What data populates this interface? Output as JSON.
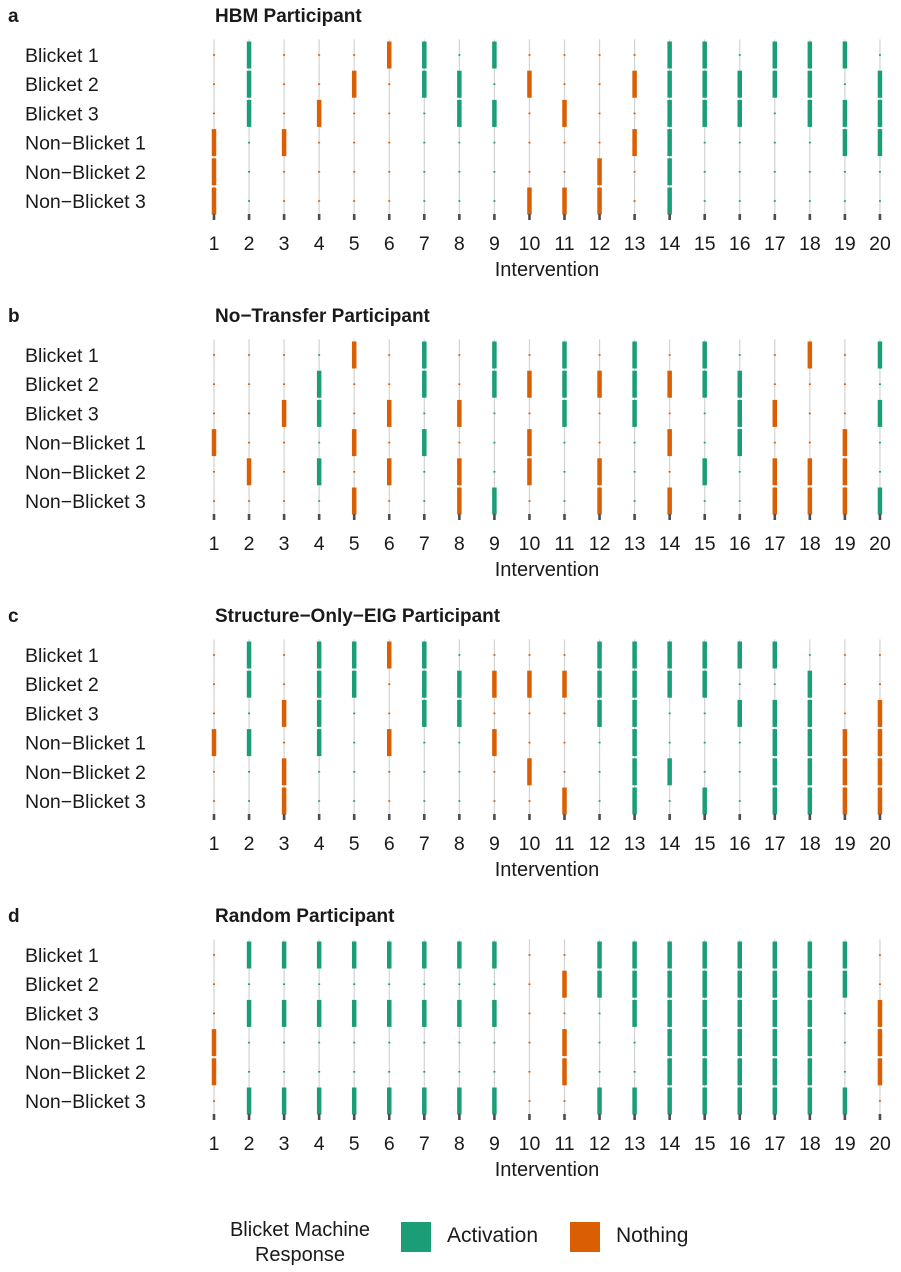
{
  "chart_data": [
    {
      "type": "heatmap",
      "panel_label": "a",
      "title": "HBM Participant",
      "xlabel": "Intervention",
      "ylabel": "",
      "x_ticks": [
        "1",
        "2",
        "3",
        "4",
        "5",
        "6",
        "7",
        "8",
        "9",
        "10",
        "11",
        "12",
        "13",
        "14",
        "15",
        "16",
        "17",
        "18",
        "19",
        "20"
      ],
      "rows": [
        "Blicket 1",
        "Blicket 2",
        "Blicket 3",
        "Non−Blicket 1",
        "Non−Blicket 2",
        "Non−Blicket 3"
      ],
      "response": [
        "Nothing",
        "Activation",
        "Nothing",
        "Nothing",
        "Nothing",
        "Nothing",
        "Activation",
        "Activation",
        "Activation",
        "Nothing",
        "Nothing",
        "Nothing",
        "Nothing",
        "Activation",
        "Activation",
        "Activation",
        "Activation",
        "Activation",
        "Activation",
        "Activation"
      ],
      "placed": [
        [
          0,
          1,
          0,
          0,
          0,
          1,
          1,
          0,
          1,
          0,
          0,
          0,
          0,
          1,
          1,
          0,
          1,
          1,
          1,
          0
        ],
        [
          0,
          1,
          0,
          0,
          1,
          0,
          1,
          1,
          0,
          1,
          0,
          0,
          1,
          1,
          1,
          1,
          1,
          1,
          0,
          1
        ],
        [
          0,
          1,
          0,
          1,
          0,
          0,
          0,
          1,
          1,
          0,
          1,
          0,
          0,
          1,
          1,
          1,
          0,
          1,
          1,
          1
        ],
        [
          1,
          0,
          1,
          0,
          0,
          0,
          0,
          0,
          0,
          0,
          0,
          0,
          1,
          1,
          0,
          0,
          0,
          0,
          1,
          1
        ],
        [
          1,
          0,
          0,
          0,
          0,
          0,
          0,
          0,
          0,
          0,
          0,
          1,
          0,
          1,
          0,
          0,
          0,
          0,
          0,
          0
        ],
        [
          1,
          0,
          0,
          0,
          0,
          0,
          0,
          0,
          0,
          1,
          1,
          1,
          0,
          1,
          0,
          0,
          0,
          0,
          0,
          0
        ]
      ]
    },
    {
      "type": "heatmap",
      "panel_label": "b",
      "title": "No−Transfer Participant",
      "xlabel": "Intervention",
      "ylabel": "",
      "x_ticks": [
        "1",
        "2",
        "3",
        "4",
        "5",
        "6",
        "7",
        "8",
        "9",
        "10",
        "11",
        "12",
        "13",
        "14",
        "15",
        "16",
        "17",
        "18",
        "19",
        "20"
      ],
      "rows": [
        "Blicket 1",
        "Blicket 2",
        "Blicket 3",
        "Non−Blicket 1",
        "Non−Blicket 2",
        "Non−Blicket 3"
      ],
      "response": [
        "Nothing",
        "Nothing",
        "Nothing",
        "Activation",
        "Nothing",
        "Nothing",
        "Activation",
        "Nothing",
        "Activation",
        "Nothing",
        "Activation",
        "Nothing",
        "Activation",
        "Nothing",
        "Activation",
        "Activation",
        "Nothing",
        "Nothing",
        "Nothing",
        "Activation"
      ],
      "placed": [
        [
          0,
          0,
          0,
          0,
          1,
          0,
          1,
          0,
          1,
          0,
          1,
          0,
          1,
          0,
          1,
          0,
          0,
          1,
          0,
          1
        ],
        [
          0,
          0,
          0,
          1,
          0,
          0,
          1,
          0,
          1,
          1,
          1,
          1,
          1,
          1,
          1,
          1,
          0,
          0,
          0,
          0
        ],
        [
          0,
          0,
          1,
          1,
          0,
          1,
          0,
          1,
          0,
          0,
          1,
          0,
          1,
          0,
          0,
          1,
          1,
          0,
          0,
          1
        ],
        [
          1,
          0,
          0,
          0,
          1,
          0,
          1,
          0,
          0,
          1,
          0,
          0,
          0,
          1,
          0,
          1,
          0,
          0,
          1,
          0
        ],
        [
          0,
          1,
          0,
          1,
          0,
          1,
          0,
          1,
          0,
          1,
          0,
          1,
          0,
          0,
          1,
          0,
          1,
          1,
          1,
          0
        ],
        [
          0,
          0,
          0,
          0,
          1,
          0,
          0,
          1,
          1,
          0,
          0,
          1,
          0,
          1,
          0,
          0,
          1,
          1,
          1,
          1
        ]
      ]
    },
    {
      "type": "heatmap",
      "panel_label": "c",
      "title": "Structure−Only−EIG Participant",
      "xlabel": "Intervention",
      "ylabel": "",
      "x_ticks": [
        "1",
        "2",
        "3",
        "4",
        "5",
        "6",
        "7",
        "8",
        "9",
        "10",
        "11",
        "12",
        "13",
        "14",
        "15",
        "16",
        "17",
        "18",
        "19",
        "20"
      ],
      "rows": [
        "Blicket 1",
        "Blicket 2",
        "Blicket 3",
        "Non−Blicket 1",
        "Non−Blicket 2",
        "Non−Blicket 3"
      ],
      "response": [
        "Nothing",
        "Activation",
        "Nothing",
        "Activation",
        "Activation",
        "Nothing",
        "Activation",
        "Activation",
        "Nothing",
        "Nothing",
        "Nothing",
        "Activation",
        "Activation",
        "Activation",
        "Activation",
        "Activation",
        "Activation",
        "Activation",
        "Nothing",
        "Nothing"
      ],
      "placed": [
        [
          0,
          1,
          0,
          1,
          1,
          1,
          1,
          0,
          0,
          0,
          0,
          1,
          1,
          1,
          1,
          1,
          1,
          0,
          0,
          0
        ],
        [
          0,
          1,
          0,
          1,
          1,
          0,
          1,
          1,
          1,
          1,
          1,
          1,
          1,
          1,
          1,
          0,
          0,
          1,
          0,
          0
        ],
        [
          0,
          0,
          1,
          1,
          0,
          0,
          1,
          1,
          0,
          0,
          0,
          1,
          1,
          0,
          0,
          1,
          1,
          1,
          0,
          1
        ],
        [
          1,
          1,
          0,
          1,
          0,
          1,
          0,
          0,
          1,
          0,
          0,
          0,
          1,
          0,
          0,
          0,
          1,
          1,
          1,
          1
        ],
        [
          0,
          0,
          1,
          0,
          0,
          0,
          0,
          0,
          0,
          1,
          0,
          0,
          1,
          1,
          0,
          0,
          1,
          1,
          1,
          1
        ],
        [
          0,
          0,
          1,
          0,
          0,
          0,
          0,
          0,
          0,
          0,
          1,
          0,
          1,
          0,
          1,
          0,
          1,
          1,
          1,
          1
        ]
      ]
    },
    {
      "type": "heatmap",
      "panel_label": "d",
      "title": "Random Participant",
      "xlabel": "Intervention",
      "ylabel": "",
      "x_ticks": [
        "1",
        "2",
        "3",
        "4",
        "5",
        "6",
        "7",
        "8",
        "9",
        "10",
        "11",
        "12",
        "13",
        "14",
        "15",
        "16",
        "17",
        "18",
        "19",
        "20"
      ],
      "rows": [
        "Blicket 1",
        "Blicket 2",
        "Blicket 3",
        "Non−Blicket 1",
        "Non−Blicket 2",
        "Non−Blicket 3"
      ],
      "response": [
        "Nothing",
        "Activation",
        "Activation",
        "Activation",
        "Activation",
        "Activation",
        "Activation",
        "Activation",
        "Activation",
        "Nothing",
        "Nothing",
        "Activation",
        "Activation",
        "Activation",
        "Activation",
        "Activation",
        "Activation",
        "Activation",
        "Activation",
        "Nothing"
      ],
      "placed": [
        [
          0,
          1,
          1,
          1,
          1,
          1,
          1,
          1,
          1,
          0,
          0,
          1,
          1,
          1,
          1,
          1,
          1,
          1,
          1,
          0
        ],
        [
          0,
          0,
          0,
          0,
          0,
          0,
          0,
          0,
          0,
          0,
          1,
          1,
          1,
          1,
          1,
          1,
          1,
          1,
          1,
          0
        ],
        [
          0,
          1,
          1,
          1,
          1,
          1,
          1,
          1,
          1,
          0,
          0,
          0,
          1,
          1,
          1,
          1,
          1,
          1,
          0,
          1
        ],
        [
          1,
          0,
          0,
          0,
          0,
          0,
          0,
          0,
          0,
          0,
          1,
          0,
          0,
          1,
          1,
          1,
          1,
          1,
          0,
          1
        ],
        [
          1,
          0,
          0,
          0,
          0,
          0,
          0,
          0,
          0,
          0,
          1,
          0,
          0,
          1,
          1,
          1,
          1,
          1,
          0,
          1
        ],
        [
          0,
          1,
          1,
          1,
          1,
          1,
          1,
          1,
          1,
          0,
          0,
          1,
          1,
          1,
          1,
          1,
          1,
          1,
          1,
          0
        ]
      ]
    }
  ],
  "legend": {
    "title_line1": "Blicket Machine",
    "title_line2": "Response",
    "items": [
      {
        "label": "Activation",
        "color": "#1b9e77"
      },
      {
        "label": "Nothing",
        "color": "#d95f02"
      }
    ]
  },
  "colors": {
    "activation": "#1b9e77",
    "nothing": "#d95f02",
    "empty_line": "#d3d3d3",
    "tick_mark": "#4d4d4d"
  }
}
